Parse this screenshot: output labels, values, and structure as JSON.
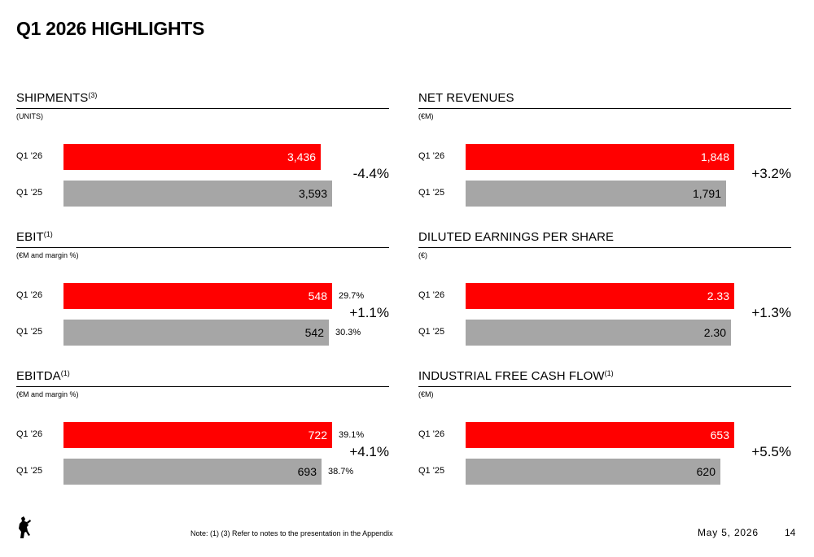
{
  "page": {
    "title": "Q1 2026 HIGHLIGHTS"
  },
  "footer": {
    "note": "Note: (1) (3) Refer to notes to the presentation in the Appendix",
    "date": "May 5, 2026",
    "page_number": "14",
    "logo_icon": "prancing-horse-icon"
  },
  "colors": {
    "current": "#ff0000",
    "prior": "#a6a6a6"
  },
  "chart_data": [
    {
      "type": "bar",
      "title": "SHIPMENTS",
      "title_note": "(3)",
      "unit": "(UNITS)",
      "categories": [
        "Q1 '26",
        "Q1 '25"
      ],
      "values": [
        3436,
        3593
      ],
      "value_labels": [
        "3,436",
        "3,593"
      ],
      "change": "-4.4%"
    },
    {
      "type": "bar",
      "title": "NET REVENUES",
      "title_note": "",
      "unit": "(€M)",
      "categories": [
        "Q1 '26",
        "Q1 '25"
      ],
      "values": [
        1848,
        1791
      ],
      "value_labels": [
        "1,848",
        "1,791"
      ],
      "change": "+3.2%"
    },
    {
      "type": "bar",
      "title": "EBIT",
      "title_note": "(1)",
      "unit": "(€M and margin %)",
      "categories": [
        "Q1 '26",
        "Q1 '25"
      ],
      "values": [
        548,
        542
      ],
      "value_labels": [
        "548",
        "542"
      ],
      "margins": [
        "29.7%",
        "30.3%"
      ],
      "change": "+1.1%"
    },
    {
      "type": "bar",
      "title": "DILUTED EARNINGS PER SHARE",
      "title_note": "",
      "unit": "(€)",
      "categories": [
        "Q1 '26",
        "Q1 '25"
      ],
      "values": [
        2.33,
        2.3
      ],
      "value_labels": [
        "2.33",
        "2.30"
      ],
      "change": "+1.3%"
    },
    {
      "type": "bar",
      "title": "EBITDA",
      "title_note": "(1)",
      "unit": "(€M and margin %)",
      "categories": [
        "Q1 '26",
        "Q1 '25"
      ],
      "values": [
        722,
        693
      ],
      "value_labels": [
        "722",
        "693"
      ],
      "margins": [
        "39.1%",
        "38.7%"
      ],
      "change": "+4.1%"
    },
    {
      "type": "bar",
      "title": "INDUSTRIAL FREE CASH FLOW",
      "title_note": "(1)",
      "unit": "(€M)",
      "categories": [
        "Q1 '26",
        "Q1 '25"
      ],
      "values": [
        653,
        620
      ],
      "value_labels": [
        "653",
        "620"
      ],
      "change": "+5.5%"
    }
  ]
}
